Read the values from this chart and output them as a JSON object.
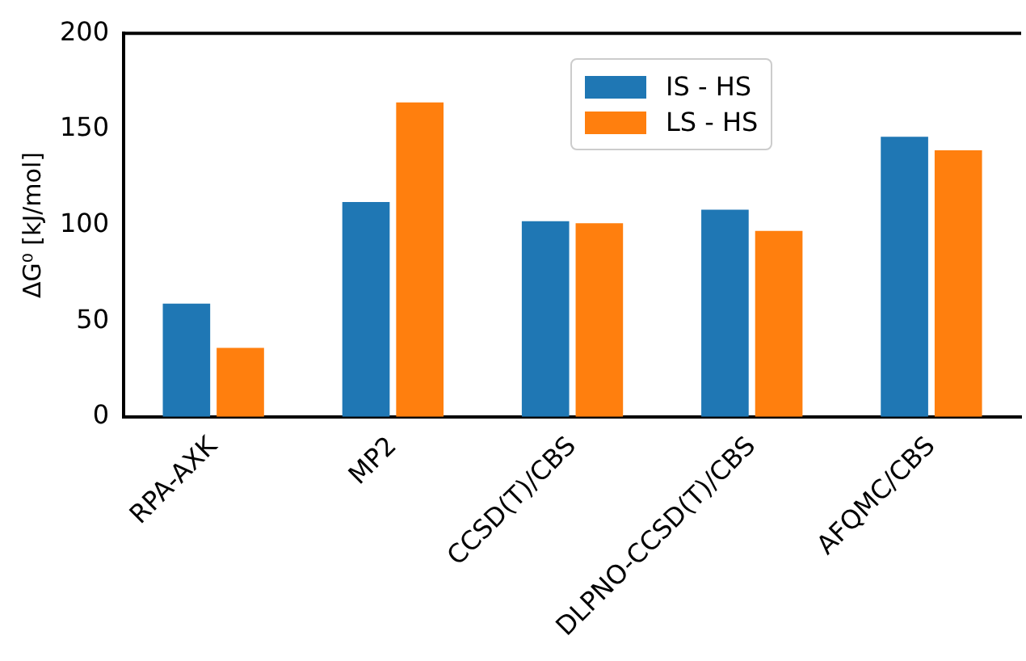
{
  "chart_data": {
    "type": "bar",
    "ylabel": "ΔG⁰ [kJ/mol]",
    "categories": [
      "RPA-AXK",
      "MP2",
      "CCSD(T)/CBS",
      "DLPNO-CCSD(T)/CBS",
      "AFQMC/CBS"
    ],
    "series": [
      {
        "name": "IS - HS",
        "color": "#1f77b4",
        "values": [
          59,
          112,
          102,
          108,
          146
        ]
      },
      {
        "name": "LS - HS",
        "color": "#ff7f0e",
        "values": [
          36,
          164,
          101,
          97,
          139
        ]
      }
    ],
    "ylim": [
      0,
      200
    ],
    "yticks": [
      0,
      50,
      100,
      150,
      200
    ],
    "grid": false,
    "legend": "top"
  }
}
